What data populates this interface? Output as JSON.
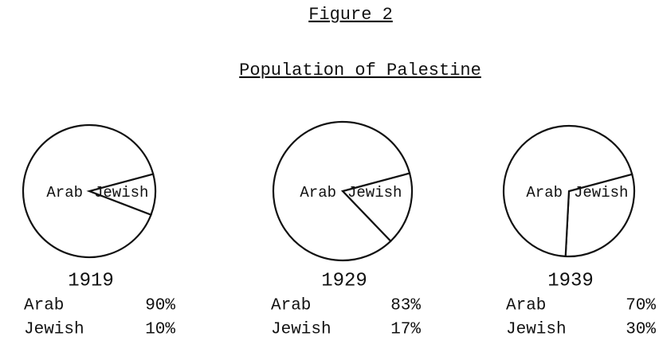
{
  "figure_label": "Figure 2",
  "title": "Population of Palestine",
  "chart_data": [
    {
      "type": "pie",
      "title": "1919",
      "categories": [
        "Arab",
        "Jewish"
      ],
      "values": [
        90,
        10
      ],
      "value_labels": [
        "90%",
        "10%"
      ]
    },
    {
      "type": "pie",
      "title": "1929",
      "categories": [
        "Arab",
        "Jewish"
      ],
      "values": [
        83,
        17
      ],
      "value_labels": [
        "83%",
        "17%"
      ]
    },
    {
      "type": "pie",
      "title": "1939",
      "categories": [
        "Arab",
        "Jewish"
      ],
      "values": [
        70,
        30
      ],
      "value_labels": [
        "70%",
        "30%"
      ]
    }
  ]
}
